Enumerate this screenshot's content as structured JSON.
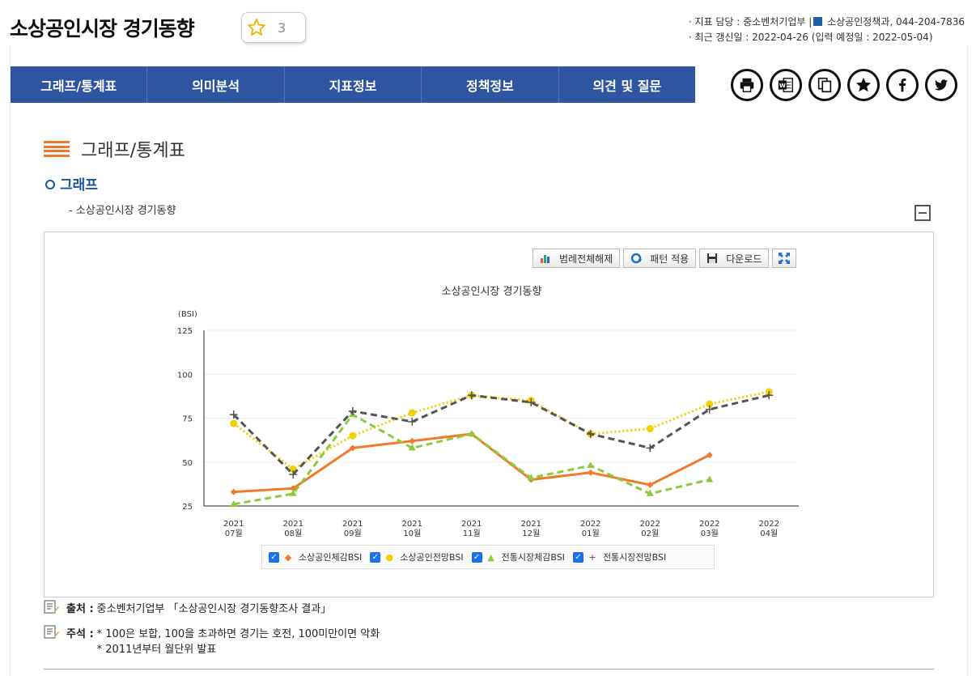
{
  "header": {
    "title": "소상공인시장 경기동향",
    "star_count": "3",
    "meta_line1_prefix": "· 지표 담당 : 중소벤처기업부 |",
    "meta_line1_suffix": " 소상공인정책과, 044-204-7836",
    "meta_line2": "· 최근 갱신일 : 2022-04-26 (입력 예정일 : 2022-05-04)"
  },
  "tabs": [
    "그래프/통계표",
    "의미분석",
    "지표정보",
    "정책정보",
    "의견 및 질문"
  ],
  "share_icons": [
    "print-icon",
    "word-icon",
    "copy-icon",
    "favorite-star-icon",
    "facebook-icon",
    "twitter-icon"
  ],
  "section": {
    "title": "그래프/통계표",
    "graph_label": "그래프",
    "sub_label": "- 소상공인시장 경기동향"
  },
  "toolbar": {
    "legend_off": "범례전체해제",
    "pattern": "패턴 적용",
    "download": "다운로드"
  },
  "chart_data": {
    "type": "line",
    "title": "소상공인시장 경기동향",
    "unit_label": "(BSI)",
    "ylim": [
      25,
      125
    ],
    "yticks": [
      25,
      50,
      75,
      100,
      125
    ],
    "grid": true,
    "categories": [
      [
        "2021",
        "07월"
      ],
      [
        "2021",
        "08월"
      ],
      [
        "2021",
        "09월"
      ],
      [
        "2021",
        "10월"
      ],
      [
        "2021",
        "11월"
      ],
      [
        "2021",
        "12월"
      ],
      [
        "2022",
        "01월"
      ],
      [
        "2022",
        "02월"
      ],
      [
        "2022",
        "03월"
      ],
      [
        "2022",
        "04월"
      ]
    ],
    "series": [
      {
        "name": "소상공인체감BSI",
        "color": "#f07a2a",
        "style": "solid",
        "marker": "diamond",
        "values": [
          33,
          35,
          58,
          62,
          66,
          40,
          44,
          37,
          54,
          null
        ]
      },
      {
        "name": "소상공인전망BSI",
        "color": "#f5d000",
        "style": "dotted",
        "marker": "circle",
        "values": [
          72,
          46,
          65,
          78,
          88,
          85,
          66,
          69,
          83,
          90
        ]
      },
      {
        "name": "전통시장체감BSI",
        "color": "#8ccc3a",
        "style": "dashed",
        "marker": "triangle",
        "values": [
          26,
          32,
          77,
          58,
          66,
          41,
          48,
          32,
          40,
          null
        ]
      },
      {
        "name": "전통시장전망BSI",
        "color": "#555555",
        "style": "dashed",
        "marker": "plus",
        "values": [
          77,
          43,
          79,
          73,
          88,
          84,
          66,
          58,
          80,
          88
        ]
      }
    ],
    "legend_position": "bottom"
  },
  "notes": {
    "source_key": "출처 :",
    "source_text": "중소벤처기업부 「소상공인시장 경기동향조사 결과」",
    "remark_key": "주석 :",
    "remark_line1": "* 100은 보합, 100을 초과하면 경기는 호전, 100미만이면 악화",
    "remark_line2": "* 2011년부터 월단위 발표"
  }
}
